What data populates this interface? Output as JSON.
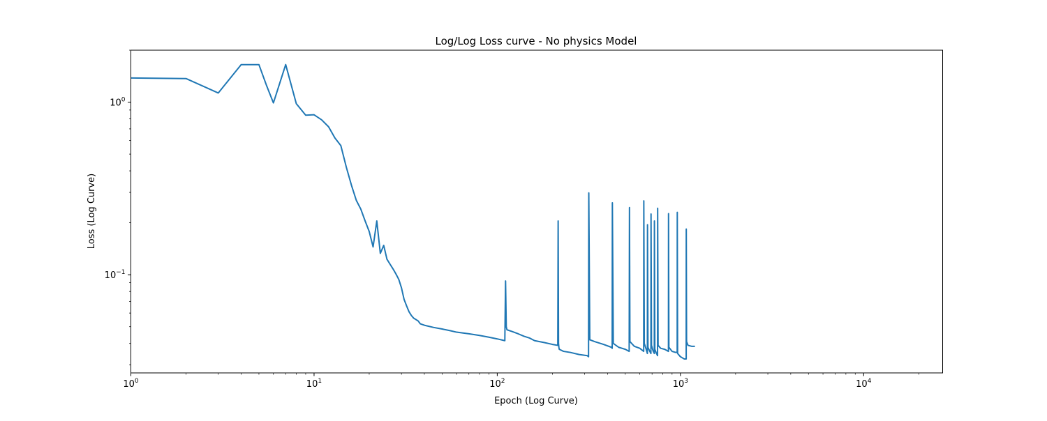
{
  "chart_data": {
    "type": "line",
    "title": "Log/Log Loss curve - No physics Model",
    "xlabel": "Epoch (Log Curve)",
    "ylabel": "Loss (Log Curve)",
    "xscale": "log",
    "yscale": "log",
    "xlim": [
      1,
      27000
    ],
    "ylim": [
      0.027,
      2.0
    ],
    "grid": false,
    "legend": "none",
    "line_color": "#1f77b4",
    "x_ticks": [
      {
        "value": 1,
        "base": "10",
        "exp": "0"
      },
      {
        "value": 10,
        "base": "10",
        "exp": "1"
      },
      {
        "value": 100,
        "base": "10",
        "exp": "2"
      },
      {
        "value": 1000,
        "base": "10",
        "exp": "3"
      },
      {
        "value": 10000,
        "base": "10",
        "exp": "4"
      }
    ],
    "y_ticks": [
      {
        "value": 1,
        "base": "10",
        "exp": "0"
      },
      {
        "value": 0.1,
        "base": "10",
        "exp": "−1"
      }
    ],
    "series": [
      {
        "x": [
          1,
          2,
          3,
          4,
          5,
          5.5,
          6,
          7,
          8,
          9,
          10,
          11,
          12,
          13,
          14,
          15,
          16,
          17,
          18,
          19,
          20,
          21,
          22,
          23,
          24,
          25,
          26,
          27,
          28,
          29,
          30,
          31,
          32,
          33,
          34,
          35,
          36,
          37,
          38,
          40,
          45,
          50,
          55,
          60,
          70,
          80,
          90,
          100,
          110,
          111,
          112,
          113,
          120,
          130,
          140,
          150,
          160,
          180,
          200,
          214,
          215,
          216,
          217,
          218,
          230,
          250,
          280,
          310,
          315,
          316,
          320,
          340,
          380,
          420,
          424,
          425,
          430,
          460,
          500,
          525,
          527,
          530,
          560,
          600,
          630,
          631,
          635,
          650,
          660,
          661,
          665,
          680,
          690,
          691,
          695,
          710,
          720,
          721,
          725,
          740,
          750,
          751,
          755,
          780,
          820,
          860,
          861,
          865,
          900,
          940,
          960,
          961,
          965,
          1000,
          1050,
          1075,
          1076,
          1080,
          1100,
          1150,
          1200
        ],
        "y": [
          1.38,
          1.37,
          1.13,
          1.65,
          1.65,
          1.25,
          0.99,
          1.65,
          0.98,
          0.84,
          0.845,
          0.79,
          0.72,
          0.62,
          0.56,
          0.42,
          0.33,
          0.27,
          0.24,
          0.205,
          0.178,
          0.145,
          0.205,
          0.133,
          0.148,
          0.123,
          0.115,
          0.108,
          0.101,
          0.094,
          0.084,
          0.072,
          0.066,
          0.061,
          0.058,
          0.056,
          0.055,
          0.054,
          0.052,
          0.051,
          0.0495,
          0.0485,
          0.0475,
          0.0465,
          0.0455,
          0.0445,
          0.0435,
          0.0425,
          0.0415,
          0.092,
          0.05,
          0.048,
          0.047,
          0.0455,
          0.044,
          0.043,
          0.0415,
          0.0405,
          0.0395,
          0.039,
          0.205,
          0.04,
          0.038,
          0.037,
          0.036,
          0.0355,
          0.0345,
          0.034,
          0.0335,
          0.298,
          0.042,
          0.041,
          0.0395,
          0.038,
          0.0375,
          0.261,
          0.04,
          0.038,
          0.037,
          0.036,
          0.245,
          0.041,
          0.0385,
          0.0375,
          0.036,
          0.268,
          0.04,
          0.037,
          0.035,
          0.195,
          0.038,
          0.036,
          0.035,
          0.225,
          0.039,
          0.036,
          0.035,
          0.205,
          0.037,
          0.035,
          0.034,
          0.243,
          0.039,
          0.0375,
          0.037,
          0.036,
          0.226,
          0.038,
          0.036,
          0.0355,
          0.0355,
          0.23,
          0.035,
          0.0335,
          0.0325,
          0.0325,
          0.184,
          0.041,
          0.039,
          0.0385,
          0.0385
        ]
      }
    ]
  }
}
